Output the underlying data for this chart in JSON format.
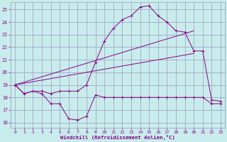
{
  "xlabel": "Windchill (Refroidissement éolien,°C)",
  "xlim": [
    -0.5,
    23.5
  ],
  "ylim": [
    15.6,
    25.6
  ],
  "yticks": [
    16,
    17,
    18,
    19,
    20,
    21,
    22,
    23,
    24,
    25
  ],
  "xticks": [
    0,
    1,
    2,
    3,
    4,
    5,
    6,
    7,
    8,
    9,
    10,
    11,
    12,
    13,
    14,
    15,
    16,
    17,
    18,
    19,
    20,
    21,
    22,
    23
  ],
  "bg_color": "#c8ecec",
  "grid_color": "#9999bb",
  "line_color": "#880088",
  "series_jagged": {
    "x": [
      0,
      1,
      2,
      3,
      4,
      5,
      6,
      7,
      8,
      9,
      10,
      11,
      12,
      13,
      14,
      15,
      16,
      17,
      18,
      19,
      20,
      21,
      22,
      23
    ],
    "y": [
      19.0,
      18.3,
      18.5,
      18.3,
      17.5,
      17.5,
      16.3,
      16.2,
      16.5,
      18.2,
      18.0,
      18.0,
      18.0,
      18.0,
      18.0,
      18.0,
      18.0,
      18.0,
      18.0,
      18.0,
      18.0,
      18.0,
      17.5,
      17.5
    ]
  },
  "series_peak": {
    "x": [
      0,
      1,
      2,
      3,
      4,
      5,
      6,
      7,
      8,
      9,
      10,
      11,
      12,
      13,
      14,
      15,
      16,
      17,
      18,
      19,
      20,
      21,
      22,
      23
    ],
    "y": [
      19.0,
      18.3,
      18.5,
      18.5,
      18.3,
      18.5,
      18.5,
      18.5,
      19.0,
      20.8,
      22.5,
      23.5,
      24.2,
      24.5,
      25.2,
      25.3,
      24.5,
      24.0,
      23.3,
      23.2,
      21.7,
      21.7,
      17.8,
      17.7
    ]
  },
  "line_diag_upper": [
    [
      0,
      19.0
    ],
    [
      20,
      23.3
    ]
  ],
  "line_diag_lower": [
    [
      0,
      19.0
    ],
    [
      20,
      21.5
    ]
  ]
}
